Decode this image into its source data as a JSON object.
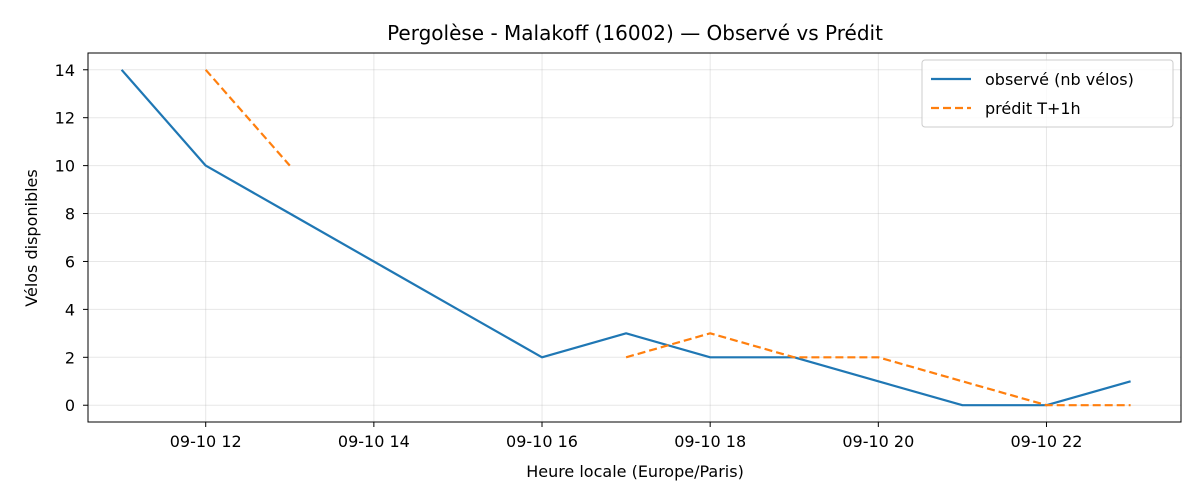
{
  "chart_data": {
    "type": "line",
    "title": "Pergolèse - Malakoff (16002) — Observé vs Prédit",
    "xlabel": "Heure locale (Europe/Paris)",
    "ylabel": "Vélos disponibles",
    "x_unit": "hour of day (09-10)",
    "xlim": [
      10.6,
      23.6
    ],
    "ylim": [
      -0.7,
      14.7
    ],
    "x_ticks": [
      {
        "value": 12,
        "label": "09-10 12"
      },
      {
        "value": 14,
        "label": "09-10 14"
      },
      {
        "value": 16,
        "label": "09-10 16"
      },
      {
        "value": 18,
        "label": "09-10 18"
      },
      {
        "value": 20,
        "label": "09-10 20"
      },
      {
        "value": 22,
        "label": "09-10 22"
      }
    ],
    "y_ticks": [
      0,
      2,
      4,
      6,
      8,
      10,
      12,
      14
    ],
    "grid": true,
    "legend_position": "top-right",
    "series": [
      {
        "name": "observé (nb vélos)",
        "color": "#1f77b4",
        "style": "solid",
        "segments": [
          [
            [
              11,
              14
            ],
            [
              12,
              10
            ],
            [
              13,
              8
            ],
            [
              14,
              6
            ],
            [
              15,
              4
            ],
            [
              16,
              2
            ],
            [
              17,
              3
            ],
            [
              18,
              2
            ],
            [
              19,
              2
            ],
            [
              20,
              1
            ],
            [
              21,
              0
            ],
            [
              22,
              0
            ],
            [
              23,
              1
            ]
          ]
        ]
      },
      {
        "name": "prédit T+1h",
        "color": "#ff7f0e",
        "style": "dashed",
        "segments": [
          [
            [
              12,
              14
            ],
            [
              13,
              10
            ]
          ],
          [
            [
              17,
              2
            ],
            [
              18,
              3
            ],
            [
              19,
              2
            ],
            [
              20,
              2
            ],
            [
              21,
              1
            ],
            [
              22,
              0
            ],
            [
              23,
              0
            ]
          ]
        ]
      }
    ]
  }
}
